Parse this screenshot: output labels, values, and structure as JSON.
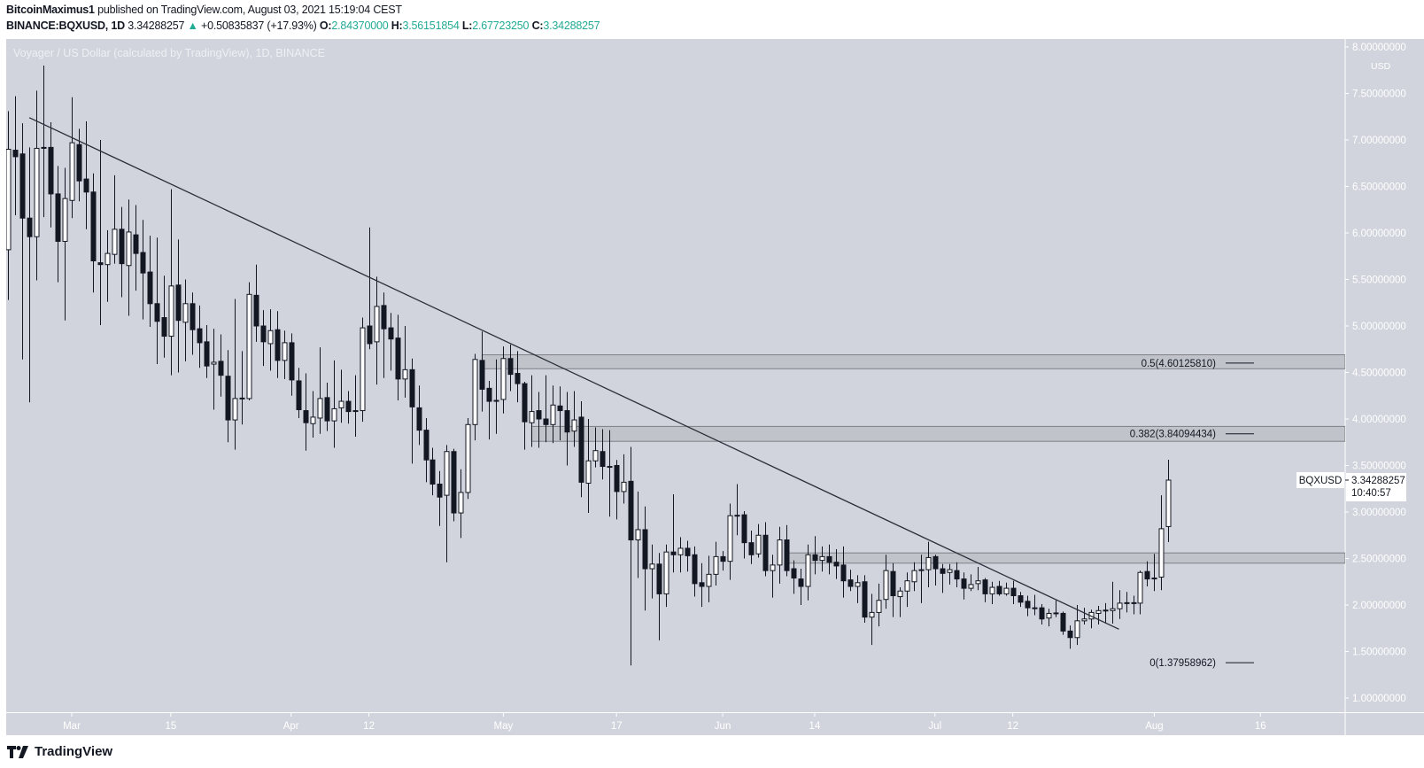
{
  "header": {
    "author": "BitcoinMaximus1",
    "published_text": "published on TradingView.com, August 03, 2021 15:19:04 CEST",
    "symbol": "BINANCE:BQXUSD, 1D",
    "last": "3.34288257",
    "change": "+0.50835837 (+17.93%)",
    "change_icon": "triangle-up-icon",
    "o_label": "O:",
    "o_value": "2.84370000",
    "h_label": "H:",
    "h_value": "3.56151854",
    "l_label": "L:",
    "l_value": "2.67723250",
    "c_label": "C:",
    "c_value": "3.34288257"
  },
  "footer": {
    "logo_text": "TradingView"
  },
  "colors": {
    "chart_bg": "#d1d4dc",
    "up_color": "#22ab94",
    "candle_dark": "#131722",
    "candle_light": "#ffffff",
    "zone_fill": "#c1c3ca",
    "zone_border": "#7f8087",
    "axis_text": "#ffffff"
  },
  "chart_data": {
    "type": "candlestick",
    "title": "Voyager / US Dollar (calculated by TradingView), 1D, BINANCE",
    "currency_label": "USD",
    "ylim": [
      1.0,
      8.0
    ],
    "grid": false,
    "y_ticks": [
      "1.00000000",
      "1.50000000",
      "2.00000000",
      "2.50000000",
      "3.00000000",
      "3.50000000",
      "4.00000000",
      "4.50000000",
      "5.00000000",
      "5.50000000",
      "6.00000000",
      "6.50000000",
      "7.00000000",
      "7.50000000",
      "8.00000000"
    ],
    "x_ticks": [
      {
        "date": "2021-03-01",
        "label": "Mar"
      },
      {
        "date": "2021-03-15",
        "label": "15"
      },
      {
        "date": "2021-04-01",
        "label": "Apr"
      },
      {
        "date": "2021-04-12",
        "label": "12"
      },
      {
        "date": "2021-05-01",
        "label": "May"
      },
      {
        "date": "2021-05-17",
        "label": "17"
      },
      {
        "date": "2021-06-01",
        "label": "Jun"
      },
      {
        "date": "2021-06-14",
        "label": "14"
      },
      {
        "date": "2021-07-01",
        "label": "Jul"
      },
      {
        "date": "2021-07-12",
        "label": "12"
      },
      {
        "date": "2021-08-01",
        "label": "Aug"
      },
      {
        "date": "2021-08-16",
        "label": "16"
      }
    ],
    "ohlc_fields": [
      "date",
      "open",
      "high",
      "low",
      "close"
    ],
    "candles": [
      [
        "2021-02-20",
        5.82,
        7.31,
        5.28,
        6.9
      ],
      [
        "2021-02-21",
        6.89,
        7.47,
        6.19,
        6.82
      ],
      [
        "2021-02-22",
        6.85,
        7.18,
        4.64,
        6.16
      ],
      [
        "2021-02-23",
        6.16,
        6.92,
        4.18,
        5.96
      ],
      [
        "2021-02-24",
        5.96,
        7.53,
        5.49,
        6.91
      ],
      [
        "2021-02-25",
        6.92,
        7.8,
        6.17,
        6.91
      ],
      [
        "2021-02-26",
        6.92,
        7.19,
        6.06,
        6.42
      ],
      [
        "2021-02-27",
        6.42,
        6.72,
        5.47,
        5.91
      ],
      [
        "2021-02-28",
        5.91,
        6.7,
        5.06,
        6.37
      ],
      [
        "2021-03-01",
        6.35,
        7.46,
        6.16,
        6.97
      ],
      [
        "2021-03-02",
        6.95,
        7.12,
        6.34,
        6.56
      ],
      [
        "2021-03-03",
        6.58,
        7.2,
        6.04,
        6.44
      ],
      [
        "2021-03-04",
        6.44,
        6.64,
        5.36,
        5.7
      ],
      [
        "2021-03-05",
        5.68,
        7.0,
        5.01,
        5.66
      ],
      [
        "2021-03-06",
        5.66,
        6.03,
        5.26,
        5.78
      ],
      [
        "2021-03-07",
        5.77,
        6.62,
        5.67,
        6.04
      ],
      [
        "2021-03-08",
        6.04,
        6.28,
        5.31,
        5.67
      ],
      [
        "2021-03-09",
        5.65,
        6.36,
        5.11,
        6.01
      ],
      [
        "2021-03-10",
        5.98,
        6.3,
        5.38,
        5.78
      ],
      [
        "2021-03-11",
        5.79,
        6.14,
        5.07,
        5.57
      ],
      [
        "2021-03-12",
        5.58,
        5.97,
        4.99,
        5.24
      ],
      [
        "2021-03-13",
        5.24,
        5.95,
        4.59,
        5.05
      ],
      [
        "2021-03-14",
        5.09,
        5.54,
        4.66,
        4.89
      ],
      [
        "2021-03-15",
        4.89,
        6.47,
        4.47,
        5.43
      ],
      [
        "2021-03-16",
        5.44,
        5.93,
        4.5,
        5.06
      ],
      [
        "2021-03-17",
        5.04,
        5.5,
        4.62,
        5.24
      ],
      [
        "2021-03-18",
        5.24,
        5.36,
        4.69,
        4.96
      ],
      [
        "2021-03-19",
        4.97,
        5.22,
        4.55,
        4.82
      ],
      [
        "2021-03-20",
        4.83,
        5.01,
        4.44,
        4.57
      ],
      [
        "2021-03-21",
        4.59,
        4.97,
        4.1,
        4.61
      ],
      [
        "2021-03-22",
        4.62,
        4.91,
        4.24,
        4.47
      ],
      [
        "2021-03-23",
        4.46,
        4.74,
        3.75,
        3.99
      ],
      [
        "2021-03-24",
        3.99,
        5.29,
        3.67,
        4.22
      ],
      [
        "2021-03-25",
        4.22,
        4.73,
        3.94,
        4.225
      ],
      [
        "2021-03-26",
        4.22,
        5.47,
        4.2,
        5.34
      ],
      [
        "2021-03-27",
        5.33,
        5.66,
        4.83,
        5.0
      ],
      [
        "2021-03-28",
        5.0,
        5.17,
        4.57,
        4.83
      ],
      [
        "2021-03-29",
        4.81,
        5.18,
        4.52,
        4.95
      ],
      [
        "2021-03-30",
        4.96,
        5.16,
        4.44,
        4.63
      ],
      [
        "2021-03-31",
        4.63,
        4.95,
        4.43,
        4.82
      ],
      [
        "2021-04-01",
        4.82,
        4.92,
        4.25,
        4.42
      ],
      [
        "2021-04-02",
        4.41,
        4.55,
        4.01,
        4.1
      ],
      [
        "2021-04-03",
        4.09,
        4.49,
        3.66,
        3.96
      ],
      [
        "2021-04-04",
        3.95,
        4.3,
        3.8,
        4.02
      ],
      [
        "2021-04-05",
        4.01,
        4.77,
        3.84,
        4.22
      ],
      [
        "2021-04-06",
        4.23,
        4.39,
        3.87,
        3.98
      ],
      [
        "2021-04-07",
        3.98,
        4.63,
        3.69,
        4.11
      ],
      [
        "2021-04-08",
        4.12,
        4.53,
        3.96,
        4.19
      ],
      [
        "2021-04-09",
        4.19,
        4.3,
        3.95,
        4.08
      ],
      [
        "2021-04-10",
        4.09,
        4.47,
        3.81,
        4.09
      ],
      [
        "2021-04-11",
        4.09,
        5.09,
        3.97,
        4.98
      ],
      [
        "2021-04-12",
        5.0,
        6.06,
        4.75,
        4.81
      ],
      [
        "2021-04-13",
        4.83,
        5.53,
        4.37,
        5.21
      ],
      [
        "2021-04-14",
        5.22,
        5.36,
        4.44,
        4.97
      ],
      [
        "2021-04-15",
        4.98,
        5.14,
        4.52,
        4.86
      ],
      [
        "2021-04-16",
        4.87,
        5.12,
        4.2,
        4.43
      ],
      [
        "2021-04-17",
        4.43,
        5.0,
        4.23,
        4.53
      ],
      [
        "2021-04-18",
        4.53,
        4.65,
        3.52,
        4.13
      ],
      [
        "2021-04-19",
        4.12,
        4.36,
        3.72,
        3.88
      ],
      [
        "2021-04-20",
        3.88,
        4.01,
        3.32,
        3.56
      ],
      [
        "2021-04-21",
        3.56,
        3.69,
        3.18,
        3.3
      ],
      [
        "2021-04-22",
        3.3,
        3.44,
        2.85,
        3.16
      ],
      [
        "2021-04-23",
        3.18,
        3.72,
        2.46,
        3.65
      ],
      [
        "2021-04-24",
        3.65,
        3.68,
        2.9,
        2.99
      ],
      [
        "2021-04-25",
        2.99,
        3.46,
        2.72,
        3.21
      ],
      [
        "2021-04-26",
        3.21,
        4.01,
        3.14,
        3.94
      ],
      [
        "2021-04-27",
        3.94,
        4.7,
        3.77,
        4.64
      ],
      [
        "2021-04-28",
        4.63,
        4.94,
        4.08,
        4.32
      ],
      [
        "2021-04-29",
        4.33,
        4.41,
        3.78,
        4.19
      ],
      [
        "2021-04-30",
        4.2,
        4.64,
        3.84,
        4.19
      ],
      [
        "2021-05-01",
        4.21,
        4.78,
        4.06,
        4.65
      ],
      [
        "2021-05-02",
        4.65,
        4.8,
        4.3,
        4.48
      ],
      [
        "2021-05-03",
        4.49,
        4.73,
        4.18,
        4.38
      ],
      [
        "2021-05-04",
        4.38,
        4.4,
        3.67,
        3.97
      ],
      [
        "2021-05-05",
        3.96,
        4.47,
        3.7,
        4.08
      ],
      [
        "2021-05-06",
        4.09,
        4.29,
        3.69,
        4.0
      ],
      [
        "2021-05-07",
        4.0,
        4.47,
        3.75,
        3.94
      ],
      [
        "2021-05-08",
        3.94,
        4.36,
        3.74,
        4.15
      ],
      [
        "2021-05-09",
        4.14,
        4.35,
        3.77,
        4.09
      ],
      [
        "2021-05-10",
        4.09,
        4.29,
        3.5,
        3.86
      ],
      [
        "2021-05-11",
        3.87,
        4.3,
        3.7,
        3.99
      ],
      [
        "2021-05-12",
        4.02,
        4.19,
        3.16,
        3.32
      ],
      [
        "2021-05-13",
        3.31,
        4.0,
        2.99,
        3.55
      ],
      [
        "2021-05-14",
        3.55,
        3.91,
        3.48,
        3.66
      ],
      [
        "2021-05-15",
        3.65,
        3.89,
        3.35,
        3.49
      ],
      [
        "2021-05-16",
        3.49,
        3.88,
        2.95,
        3.485
      ],
      [
        "2021-05-17",
        3.5,
        3.56,
        2.92,
        3.22
      ],
      [
        "2021-05-18",
        3.22,
        3.62,
        3.09,
        3.32
      ],
      [
        "2021-05-19",
        3.33,
        3.7,
        1.35,
        2.7
      ],
      [
        "2021-05-20",
        2.7,
        3.22,
        2.29,
        2.81
      ],
      [
        "2021-05-21",
        2.81,
        3.06,
        1.94,
        2.39
      ],
      [
        "2021-05-22",
        2.39,
        2.65,
        2.07,
        2.44
      ],
      [
        "2021-05-23",
        2.44,
        2.56,
        1.62,
        2.12
      ],
      [
        "2021-05-24",
        2.12,
        2.65,
        1.98,
        2.57
      ],
      [
        "2021-05-25",
        2.57,
        3.19,
        2.35,
        2.54
      ],
      [
        "2021-05-26",
        2.54,
        2.73,
        2.35,
        2.61
      ],
      [
        "2021-05-27",
        2.61,
        2.69,
        2.36,
        2.53
      ],
      [
        "2021-05-28",
        2.54,
        2.63,
        2.09,
        2.23
      ],
      [
        "2021-05-29",
        2.24,
        2.45,
        1.98,
        2.2
      ],
      [
        "2021-05-30",
        2.2,
        2.53,
        2.03,
        2.33
      ],
      [
        "2021-05-31",
        2.33,
        2.68,
        2.21,
        2.52
      ],
      [
        "2021-06-01",
        2.52,
        2.58,
        2.37,
        2.47
      ],
      [
        "2021-06-02",
        2.47,
        3.09,
        2.27,
        2.96
      ],
      [
        "2021-06-03",
        2.96,
        3.3,
        2.75,
        2.965
      ],
      [
        "2021-06-04",
        2.97,
        3.01,
        2.5,
        2.67
      ],
      [
        "2021-06-05",
        2.67,
        2.8,
        2.44,
        2.54
      ],
      [
        "2021-06-06",
        2.55,
        2.87,
        2.51,
        2.75
      ],
      [
        "2021-06-07",
        2.75,
        2.89,
        2.31,
        2.37
      ],
      [
        "2021-06-08",
        2.37,
        2.54,
        2.08,
        2.43
      ],
      [
        "2021-06-09",
        2.43,
        2.84,
        2.23,
        2.7
      ],
      [
        "2021-06-10",
        2.7,
        2.86,
        2.31,
        2.37
      ],
      [
        "2021-06-11",
        2.39,
        2.48,
        2.12,
        2.29
      ],
      [
        "2021-06-12",
        2.28,
        2.39,
        2.0,
        2.2
      ],
      [
        "2021-06-13",
        2.2,
        2.65,
        2.05,
        2.54
      ],
      [
        "2021-06-14",
        2.54,
        2.74,
        2.33,
        2.48
      ],
      [
        "2021-06-15",
        2.48,
        2.63,
        2.36,
        2.52
      ],
      [
        "2021-06-16",
        2.52,
        2.65,
        2.33,
        2.46
      ],
      [
        "2021-06-17",
        2.46,
        2.6,
        2.28,
        2.42
      ],
      [
        "2021-06-18",
        2.43,
        2.63,
        2.08,
        2.26
      ],
      [
        "2021-06-19",
        2.27,
        2.38,
        2.15,
        2.2
      ],
      [
        "2021-06-20",
        2.2,
        2.32,
        2.02,
        2.24
      ],
      [
        "2021-06-21",
        2.25,
        2.32,
        1.81,
        1.87
      ],
      [
        "2021-06-22",
        1.87,
        2.12,
        1.57,
        1.92
      ],
      [
        "2021-06-23",
        1.92,
        2.23,
        1.77,
        2.05
      ],
      [
        "2021-06-24",
        2.06,
        2.54,
        1.96,
        2.37
      ],
      [
        "2021-06-25",
        2.36,
        2.45,
        1.87,
        2.1
      ],
      [
        "2021-06-26",
        2.09,
        2.19,
        1.87,
        2.15
      ],
      [
        "2021-06-27",
        2.15,
        2.35,
        1.98,
        2.26
      ],
      [
        "2021-06-28",
        2.25,
        2.46,
        2.15,
        2.37
      ],
      [
        "2021-06-29",
        2.37,
        2.54,
        2.02,
        2.38
      ],
      [
        "2021-06-30",
        2.38,
        2.68,
        2.19,
        2.51
      ],
      [
        "2021-07-01",
        2.52,
        2.54,
        2.21,
        2.39
      ],
      [
        "2021-07-02",
        2.39,
        2.44,
        2.13,
        2.34
      ],
      [
        "2021-07-03",
        2.35,
        2.44,
        2.22,
        2.38
      ],
      [
        "2021-07-04",
        2.37,
        2.46,
        2.19,
        2.28
      ],
      [
        "2021-07-05",
        2.28,
        2.35,
        2.06,
        2.18
      ],
      [
        "2021-07-06",
        2.18,
        2.33,
        2.15,
        2.22
      ],
      [
        "2021-07-07",
        2.23,
        2.41,
        2.16,
        2.26
      ],
      [
        "2021-07-08",
        2.27,
        2.29,
        2.03,
        2.12
      ],
      [
        "2021-07-09",
        2.12,
        2.25,
        2.01,
        2.19
      ],
      [
        "2021-07-10",
        2.2,
        2.26,
        2.1,
        2.12
      ],
      [
        "2021-07-11",
        2.12,
        2.24,
        2.1,
        2.18
      ],
      [
        "2021-07-12",
        2.18,
        2.26,
        2.01,
        2.1
      ],
      [
        "2021-07-13",
        2.1,
        2.14,
        1.98,
        2.03
      ],
      [
        "2021-07-14",
        2.04,
        2.1,
        1.88,
        1.97
      ],
      [
        "2021-07-15",
        1.97,
        2.11,
        1.89,
        1.965
      ],
      [
        "2021-07-16",
        1.97,
        2.01,
        1.79,
        1.85
      ],
      [
        "2021-07-17",
        1.86,
        1.96,
        1.77,
        1.91
      ],
      [
        "2021-07-18",
        1.91,
        2.05,
        1.87,
        1.915
      ],
      [
        "2021-07-19",
        1.91,
        1.93,
        1.68,
        1.72
      ],
      [
        "2021-07-20",
        1.72,
        1.78,
        1.53,
        1.65
      ],
      [
        "2021-07-21",
        1.65,
        2.0,
        1.57,
        1.83
      ],
      [
        "2021-07-22",
        1.83,
        1.97,
        1.79,
        1.85
      ],
      [
        "2021-07-23",
        1.85,
        1.95,
        1.75,
        1.92
      ],
      [
        "2021-07-24",
        1.91,
        1.99,
        1.79,
        1.94
      ],
      [
        "2021-07-25",
        1.94,
        2.02,
        1.81,
        1.945
      ],
      [
        "2021-07-26",
        1.94,
        2.25,
        1.8,
        1.96
      ],
      [
        "2021-07-27",
        1.96,
        2.16,
        1.85,
        2.02
      ],
      [
        "2021-07-28",
        2.02,
        2.14,
        1.92,
        2.025
      ],
      [
        "2021-07-29",
        2.02,
        2.1,
        1.9,
        2.025
      ],
      [
        "2021-07-30",
        2.02,
        2.37,
        1.9,
        2.35
      ],
      [
        "2021-07-31",
        2.36,
        2.47,
        2.2,
        2.28
      ],
      [
        "2021-08-01",
        2.29,
        2.55,
        2.15,
        2.285
      ],
      [
        "2021-08-02",
        2.3,
        3.18,
        2.16,
        2.82
      ],
      [
        "2021-08-03",
        2.8437,
        3.56151854,
        2.6772325,
        3.34288257
      ]
    ],
    "trendline": [
      {
        "date": "2021-02-23",
        "price": 7.24
      },
      {
        "date": "2021-07-27",
        "price": 1.74
      }
    ],
    "zones": [
      {
        "from_date": "2021-04-28",
        "low": 4.54,
        "high": 4.69,
        "label": "0.5(4.60125810)",
        "level": 4.6012581
      },
      {
        "from_date": "2021-05-05",
        "low": 3.76,
        "high": 3.92,
        "label": "0.382(3.84094434)",
        "level": 3.84094434
      },
      {
        "from_date": "2021-06-10",
        "low": 2.45,
        "high": 2.56,
        "label": "",
        "level": null
      }
    ],
    "fib_zero": {
      "label": "0(1.37958962)",
      "level": 1.37958962
    },
    "last_price": {
      "symbol": "BQXUSD",
      "value": "3.34288257",
      "countdown": "10:40:57",
      "price": 3.34288257
    }
  }
}
